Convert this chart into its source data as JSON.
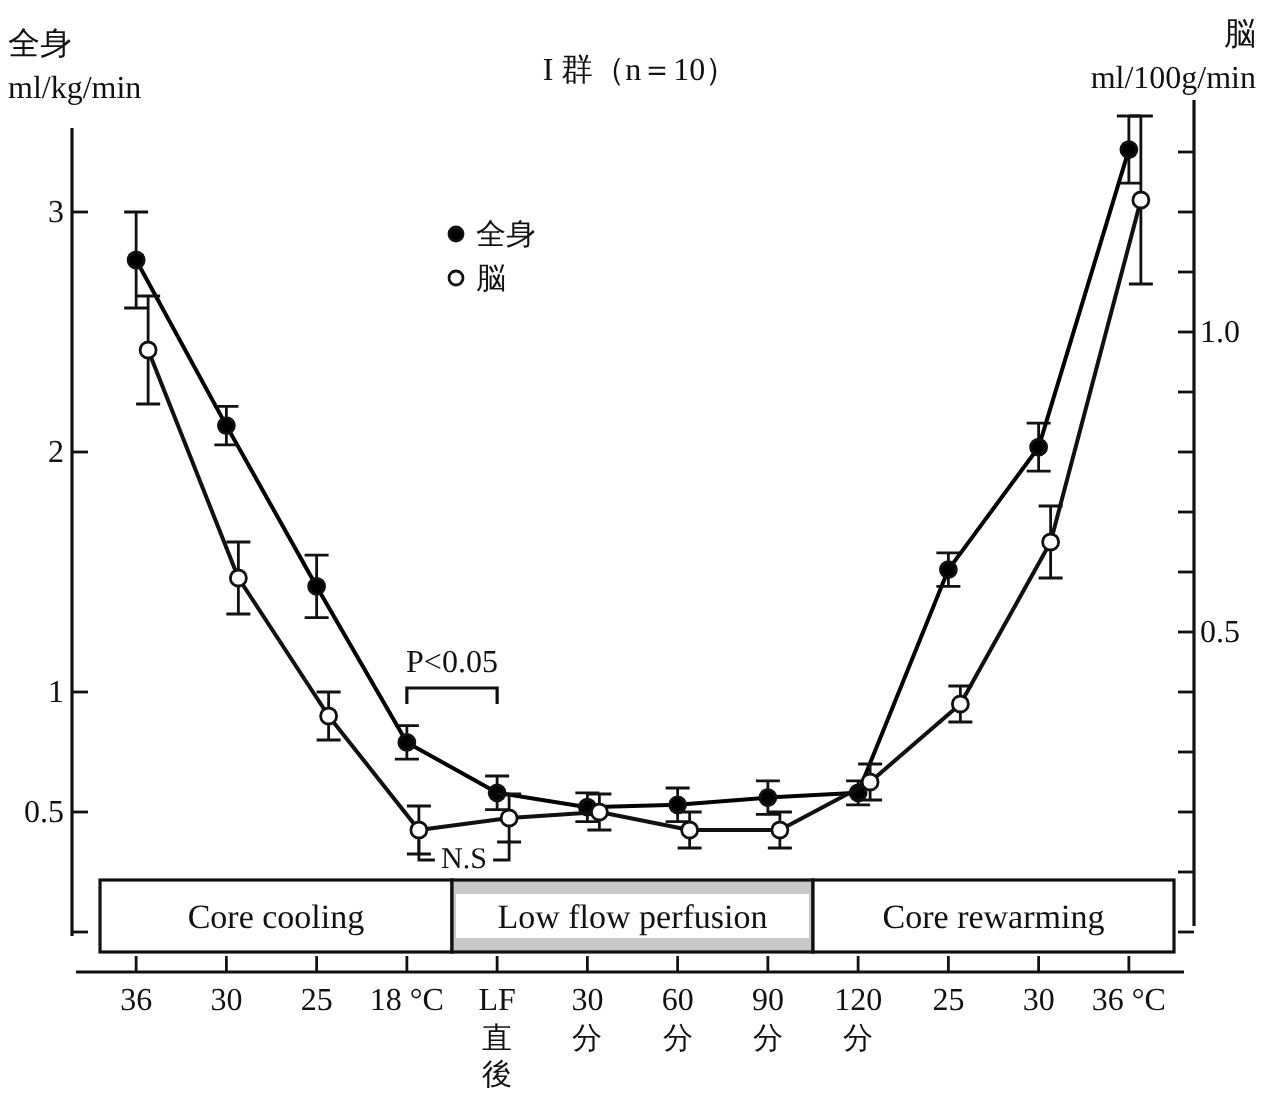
{
  "chart_data": {
    "type": "line",
    "title": "I 群（n＝10）",
    "ylabel": "全身\nml/kg/min",
    "y2label": "脳\nml/100g/min",
    "categories": [
      "36",
      "30",
      "25",
      "18 °C",
      "LF直後",
      "30分",
      "60分",
      "90分",
      "120分",
      "25",
      "30",
      "36 °C"
    ],
    "series": [
      {
        "name": "全身",
        "color": "#000000",
        "values": [
          2.8,
          2.11,
          1.44,
          0.79,
          0.58,
          0.52,
          0.53,
          0.56,
          0.58,
          1.51,
          2.02,
          3.26
        ],
        "errors": [
          0.2,
          0.08,
          0.13,
          0.07,
          0.07,
          0.06,
          0.07,
          0.07,
          0.05,
          0.07,
          0.1,
          0.14
        ]
      },
      {
        "name": "脳",
        "color": "#ffffff",
        "axis": "y2",
        "values": [
          0.97,
          0.59,
          0.36,
          0.17,
          0.19,
          0.2,
          0.17,
          0.17,
          0.25,
          0.38,
          0.65,
          1.22
        ],
        "errors": [
          0.09,
          0.06,
          0.04,
          0.04,
          0.04,
          0.03,
          0.03,
          0.03,
          0.03,
          0.03,
          0.06,
          0.14
        ]
      }
    ],
    "ylim": [
      0,
      3.35
    ],
    "yticks": [
      {
        "value": 0,
        "label": null
      },
      0.5,
      1,
      2,
      3
    ],
    "y2lim": [
      0,
      1.34
    ],
    "y2ticks": [
      {
        "value": 0,
        "label": null
      },
      {
        "value": 0.1,
        "label": null
      },
      {
        "value": 0.2,
        "label": null
      },
      {
        "value": 0.3,
        "label": null
      },
      {
        "value": 0.4,
        "label": null
      },
      {
        "value": 0.5,
        "label": "0.5"
      },
      {
        "value": 0.6,
        "label": null
      },
      {
        "value": 0.7,
        "label": null
      },
      {
        "value": 0.8,
        "label": null
      },
      {
        "value": 0.9,
        "label": null
      },
      {
        "value": 1.0,
        "label": "1.0"
      },
      {
        "value": 1.1,
        "label": null
      },
      {
        "value": 1.2,
        "label": null
      },
      {
        "value": 1.3,
        "label": null
      }
    ],
    "bands": [
      {
        "axis": "x",
        "from": "36",
        "to": "18 °C",
        "label": "Core cooling",
        "color": "#ffffff"
      },
      {
        "axis": "x",
        "from": "LF直後",
        "to": "90分",
        "label": "Low flow perfusion",
        "color": "#c8c8c8"
      },
      {
        "axis": "x",
        "from": "120分",
        "to": "36 °C",
        "label": "Core rewarming",
        "color": "#ffffff"
      }
    ],
    "annotations": [
      "P<0.05",
      "N.S"
    ],
    "marker": "circle",
    "line_style": "solid",
    "legend": "top"
  }
}
